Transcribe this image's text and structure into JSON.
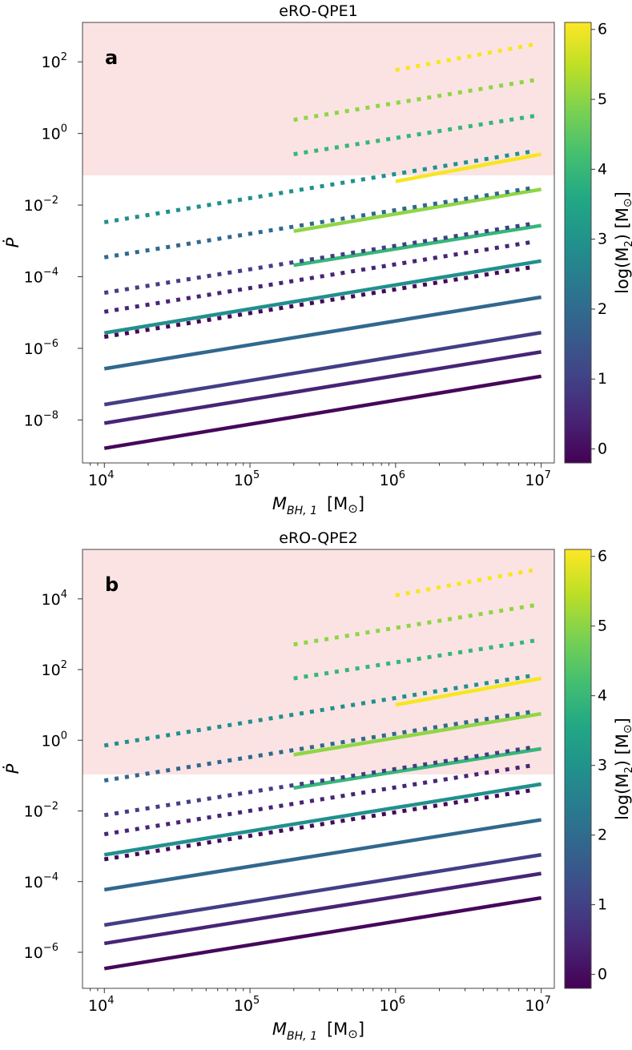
{
  "chart_data": [
    {
      "type": "line",
      "title": "eRO-QPE1",
      "panel_letter": "a",
      "xlabel": {
        "main": "M",
        "sub": "BH, 1",
        "unit": "[M",
        "unit_close": "]"
      },
      "ylabel": "Ṗ",
      "x_scale": "log",
      "y_scale": "log",
      "xlim_log10": [
        3.85,
        7.09
      ],
      "ylim_log10": [
        -9.2,
        3.1
      ],
      "xticks_exp": [
        "4",
        "5",
        "6",
        "7"
      ],
      "yticks_exp": [
        "2",
        "0",
        "−2",
        "−4",
        "−6",
        "−8"
      ],
      "yticks_values_log10": [
        2,
        0,
        -2,
        -4,
        -6,
        -8
      ],
      "shaded_region": {
        "color": "#fbe3e3",
        "above_log10": -1.17
      },
      "colorbar": {
        "label": "log(M",
        "label_sub": "2",
        "label_unit": ") [M",
        "label_close": "]",
        "range": [
          -0.2,
          6.1
        ],
        "ticks": [
          "0",
          "1",
          "2",
          "3",
          "4",
          "5",
          "6"
        ],
        "tick_values": [
          0,
          1,
          2,
          3,
          4,
          5,
          6
        ],
        "colormap": "viridis"
      },
      "series": [
        {
          "name": "solid M2=0",
          "m2": 0,
          "style": "solid",
          "color": "#46075a",
          "x_log10": [
            4,
            7
          ],
          "y_log10": [
            -8.79,
            -6.78
          ]
        },
        {
          "name": "solid M2=0.5",
          "m2": 0.5,
          "style": "solid",
          "color": "#482475",
          "x_log10": [
            4,
            7
          ],
          "y_log10": [
            -8.09,
            -6.1
          ]
        },
        {
          "name": "solid M2=1",
          "m2": 1,
          "style": "solid",
          "color": "#433e85",
          "x_log10": [
            4,
            7
          ],
          "y_log10": [
            -7.57,
            -5.56
          ]
        },
        {
          "name": "solid M2=2",
          "m2": 2,
          "style": "solid",
          "color": "#31688e",
          "x_log10": [
            4,
            7
          ],
          "y_log10": [
            -6.57,
            -4.57
          ]
        },
        {
          "name": "solid M2=3",
          "m2": 3,
          "style": "solid",
          "color": "#21908d",
          "x_log10": [
            4,
            7
          ],
          "y_log10": [
            -5.57,
            -3.56
          ]
        },
        {
          "name": "solid M2=4",
          "m2": 4,
          "style": "solid",
          "color": "#35b779",
          "x_log10": [
            5.3,
            7
          ],
          "y_log10": [
            -3.68,
            -2.57
          ]
        },
        {
          "name": "solid M2=5",
          "m2": 5,
          "style": "solid",
          "color": "#8ed645",
          "x_log10": [
            5.3,
            7
          ],
          "y_log10": [
            -2.73,
            -1.56
          ]
        },
        {
          "name": "solid M2=6",
          "m2": 6,
          "style": "solid",
          "color": "#f6e620",
          "x_log10": [
            6,
            7
          ],
          "y_log10": [
            -1.34,
            -0.58
          ]
        },
        {
          "name": "dotted M2=0",
          "m2": 0,
          "style": "dotted",
          "color": "#46075a",
          "x_log10": [
            4,
            6.955
          ],
          "y_log10": [
            -5.68,
            -3.72
          ]
        },
        {
          "name": "dotted M2=0.5",
          "m2": 0.5,
          "style": "dotted",
          "color": "#482475",
          "x_log10": [
            4,
            6.955
          ],
          "y_log10": [
            -4.98,
            -3.02
          ]
        },
        {
          "name": "dotted M2=1",
          "m2": 1,
          "style": "dotted",
          "color": "#433e85",
          "x_log10": [
            4,
            6.955
          ],
          "y_log10": [
            -4.45,
            -2.51
          ]
        },
        {
          "name": "dotted M2=2",
          "m2": 2,
          "style": "dotted",
          "color": "#31688e",
          "x_log10": [
            4,
            6.955
          ],
          "y_log10": [
            -3.46,
            -1.51
          ]
        },
        {
          "name": "dotted M2=3",
          "m2": 3,
          "style": "dotted",
          "color": "#21908d",
          "x_log10": [
            4,
            6.955
          ],
          "y_log10": [
            -2.48,
            -0.49
          ]
        },
        {
          "name": "dotted M2=4",
          "m2": 4,
          "style": "dotted",
          "color": "#35b779",
          "x_log10": [
            5.3,
            6.955
          ],
          "y_log10": [
            -0.58,
            0.49
          ]
        },
        {
          "name": "dotted M2=5",
          "m2": 5,
          "style": "dotted",
          "color": "#8ed645",
          "x_log10": [
            5.3,
            6.955
          ],
          "y_log10": [
            0.38,
            1.49
          ]
        },
        {
          "name": "dotted M2=6",
          "m2": 6,
          "style": "dotted",
          "color": "#f6e620",
          "x_log10": [
            6,
            6.955
          ],
          "y_log10": [
            1.77,
            2.49
          ]
        }
      ]
    },
    {
      "type": "line",
      "title": "eRO-QPE2",
      "panel_letter": "b",
      "xlabel": {
        "main": "M",
        "sub": "BH, 1",
        "unit": "[M",
        "unit_close": "]"
      },
      "ylabel": "Ṗ",
      "x_scale": "log",
      "y_scale": "log",
      "xlim_log10": [
        3.85,
        7.09
      ],
      "ylim_log10": [
        -7.02,
        5.4
      ],
      "xticks_exp": [
        "4",
        "5",
        "6",
        "7"
      ],
      "yticks_exp": [
        "4",
        "2",
        "0",
        "−2",
        "−4",
        "−6"
      ],
      "yticks_values_log10": [
        4,
        2,
        0,
        -2,
        -4,
        -6
      ],
      "shaded_region": {
        "color": "#fbe3e3",
        "above_log10": -0.97
      },
      "colorbar": {
        "label": "log(M",
        "label_sub": "2",
        "label_unit": ") [M",
        "label_close": "]",
        "range": [
          -0.2,
          6.1
        ],
        "ticks": [
          "0",
          "1",
          "2",
          "3",
          "4",
          "5",
          "6"
        ],
        "tick_values": [
          0,
          1,
          2,
          3,
          4,
          5,
          6
        ],
        "colormap": "viridis"
      },
      "series": [
        {
          "name": "solid M2=0",
          "m2": 0,
          "style": "solid",
          "color": "#46075a",
          "x_log10": [
            4,
            7
          ],
          "y_log10": [
            -6.46,
            -4.46
          ]
        },
        {
          "name": "solid M2=0.5",
          "m2": 0.5,
          "style": "solid",
          "color": "#482475",
          "x_log10": [
            4,
            7
          ],
          "y_log10": [
            -5.75,
            -3.77
          ]
        },
        {
          "name": "solid M2=1",
          "m2": 1,
          "style": "solid",
          "color": "#433e85",
          "x_log10": [
            4,
            7
          ],
          "y_log10": [
            -5.23,
            -3.24
          ]
        },
        {
          "name": "solid M2=2",
          "m2": 2,
          "style": "solid",
          "color": "#31688e",
          "x_log10": [
            4,
            7
          ],
          "y_log10": [
            -4.23,
            -2.25
          ]
        },
        {
          "name": "solid M2=3",
          "m2": 3,
          "style": "solid",
          "color": "#21908d",
          "x_log10": [
            4,
            7
          ],
          "y_log10": [
            -3.24,
            -1.24
          ]
        },
        {
          "name": "solid M2=4",
          "m2": 4,
          "style": "solid",
          "color": "#35b779",
          "x_log10": [
            5.3,
            7
          ],
          "y_log10": [
            -1.35,
            -0.24
          ]
        },
        {
          "name": "solid M2=5",
          "m2": 5,
          "style": "solid",
          "color": "#8ed645",
          "x_log10": [
            5.3,
            7
          ],
          "y_log10": [
            -0.41,
            0.75
          ]
        },
        {
          "name": "solid M2=6",
          "m2": 6,
          "style": "solid",
          "color": "#f6e620",
          "x_log10": [
            6,
            7
          ],
          "y_log10": [
            1.0,
            1.75
          ]
        },
        {
          "name": "dotted M2=0",
          "m2": 0,
          "style": "dotted",
          "color": "#46075a",
          "x_log10": [
            4,
            6.955
          ],
          "y_log10": [
            -3.37,
            -1.4
          ]
        },
        {
          "name": "dotted M2=0.5",
          "m2": 0.5,
          "style": "dotted",
          "color": "#482475",
          "x_log10": [
            4,
            6.955
          ],
          "y_log10": [
            -2.66,
            -0.7
          ]
        },
        {
          "name": "dotted M2=1",
          "m2": 1,
          "style": "dotted",
          "color": "#433e85",
          "x_log10": [
            4,
            6.955
          ],
          "y_log10": [
            -2.12,
            -0.19
          ]
        },
        {
          "name": "dotted M2=2",
          "m2": 2,
          "style": "dotted",
          "color": "#31688e",
          "x_log10": [
            4,
            6.955
          ],
          "y_log10": [
            -1.14,
            0.82
          ]
        },
        {
          "name": "dotted M2=3",
          "m2": 3,
          "style": "dotted",
          "color": "#21908d",
          "x_log10": [
            4,
            6.955
          ],
          "y_log10": [
            -0.15,
            1.84
          ]
        },
        {
          "name": "dotted M2=4",
          "m2": 4,
          "style": "dotted",
          "color": "#35b779",
          "x_log10": [
            5.3,
            6.955
          ],
          "y_log10": [
            1.75,
            2.82
          ]
        },
        {
          "name": "dotted M2=5",
          "m2": 5,
          "style": "dotted",
          "color": "#8ed645",
          "x_log10": [
            5.3,
            6.955
          ],
          "y_log10": [
            2.71,
            3.82
          ]
        },
        {
          "name": "dotted M2=6",
          "m2": 6,
          "style": "dotted",
          "color": "#f6e620",
          "x_log10": [
            6,
            6.955
          ],
          "y_log10": [
            4.1,
            4.82
          ]
        }
      ]
    }
  ]
}
